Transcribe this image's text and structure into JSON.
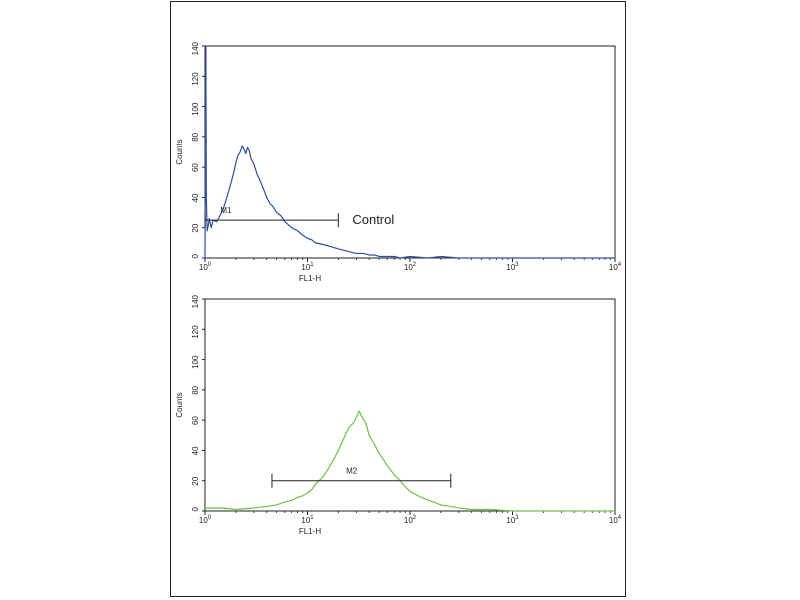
{
  "chart_data": [
    {
      "type": "line",
      "xlabel": "FL1-H",
      "ylabel": "Counts",
      "x_scale": "log",
      "xlim": [
        1,
        10000
      ],
      "ylim": [
        0,
        140
      ],
      "x_ticks": [
        {
          "value": 1,
          "base": "10",
          "exp": "0"
        },
        {
          "value": 10,
          "base": "10",
          "exp": "1"
        },
        {
          "value": 100,
          "base": "10",
          "exp": "2"
        },
        {
          "value": 1000,
          "base": "10",
          "exp": "3"
        },
        {
          "value": 10000,
          "base": "10",
          "exp": "4"
        }
      ],
      "y_ticks": [
        "0",
        "20",
        "40",
        "60",
        "80",
        "100",
        "120",
        "140"
      ],
      "color": "#2f4f9e",
      "series": [
        {
          "x": [
            1.0,
            1.02,
            1.03,
            1.05,
            1.08,
            1.1,
            1.15,
            1.2,
            1.3,
            1.4,
            1.5,
            1.6,
            1.7,
            1.8,
            1.9,
            2.0,
            2.1,
            2.2,
            2.3,
            2.4,
            2.5,
            2.6,
            2.7,
            2.8,
            2.9,
            3.0,
            3.2,
            3.4,
            3.6,
            3.8,
            4.0,
            4.3,
            4.6,
            5.0,
            5.5,
            6.0,
            6.5,
            7.0,
            8.0,
            9.0,
            10.0,
            11.0,
            12.0,
            14.0,
            16.0,
            18.0,
            20.0,
            23.0,
            26.0,
            30.0,
            35.0,
            40.0,
            45.0,
            50.0,
            60.0,
            70.0,
            80.0,
            100.0,
            150.0,
            200.0,
            300.0,
            500.0,
            1000.0,
            10000.0
          ],
          "y": [
            0,
            140,
            40,
            18,
            22,
            26,
            20,
            25,
            24,
            28,
            32,
            38,
            44,
            50,
            56,
            63,
            68,
            70,
            74,
            72,
            69,
            73,
            71,
            66,
            64,
            62,
            56,
            52,
            48,
            44,
            40,
            36,
            34,
            30,
            28,
            24,
            22,
            20,
            18,
            15,
            13,
            12,
            10,
            9,
            8,
            7,
            6,
            5,
            4,
            3,
            3,
            2,
            2,
            1,
            1,
            1,
            0,
            1,
            0,
            1,
            0,
            0,
            0,
            0
          ]
        }
      ],
      "markers": [
        {
          "label": "M1",
          "x_start": 1,
          "x_end": 20,
          "y": 25,
          "label_x": 1.6
        }
      ],
      "annotations": [
        {
          "text": "Control"
        }
      ]
    },
    {
      "type": "line",
      "xlabel": "FL1-H",
      "ylabel": "Counts",
      "x_scale": "log",
      "xlim": [
        1,
        10000
      ],
      "ylim": [
        0,
        140
      ],
      "x_ticks": [
        {
          "value": 1,
          "base": "10",
          "exp": "0"
        },
        {
          "value": 10,
          "base": "10",
          "exp": "1"
        },
        {
          "value": 100,
          "base": "10",
          "exp": "2"
        },
        {
          "value": 1000,
          "base": "10",
          "exp": "3"
        },
        {
          "value": 10000,
          "base": "10",
          "exp": "4"
        }
      ],
      "y_ticks": [
        "0",
        "20",
        "40",
        "60",
        "80",
        "100",
        "120",
        "140"
      ],
      "color": "#6cc04a",
      "series": [
        {
          "x": [
            1.0,
            1.5,
            2.0,
            3.0,
            4.0,
            5.0,
            6.0,
            7.0,
            8.0,
            9.0,
            10.0,
            11.0,
            12.0,
            14.0,
            16.0,
            18.0,
            20.0,
            22.0,
            24.0,
            26.0,
            28.0,
            30.0,
            32.0,
            34.0,
            37.0,
            40.0,
            45.0,
            50.0,
            55.0,
            60.0,
            70.0,
            80.0,
            90.0,
            100.0,
            120.0,
            140.0,
            170.0,
            200.0,
            250.0,
            300.0,
            400.0,
            600.0,
            1000.0,
            10000.0
          ],
          "y": [
            2,
            2,
            1,
            2,
            3,
            4,
            6,
            7,
            9,
            10,
            12,
            14,
            18,
            22,
            28,
            34,
            40,
            46,
            52,
            56,
            58,
            62,
            66,
            62,
            58,
            50,
            44,
            38,
            34,
            30,
            24,
            20,
            16,
            13,
            10,
            8,
            6,
            4,
            3,
            2,
            1,
            1,
            0,
            0
          ]
        }
      ],
      "markers": [
        {
          "label": "M2",
          "x_start": 4.5,
          "x_end": 250,
          "y": 20,
          "label_x": 27
        }
      ],
      "annotations": []
    }
  ]
}
